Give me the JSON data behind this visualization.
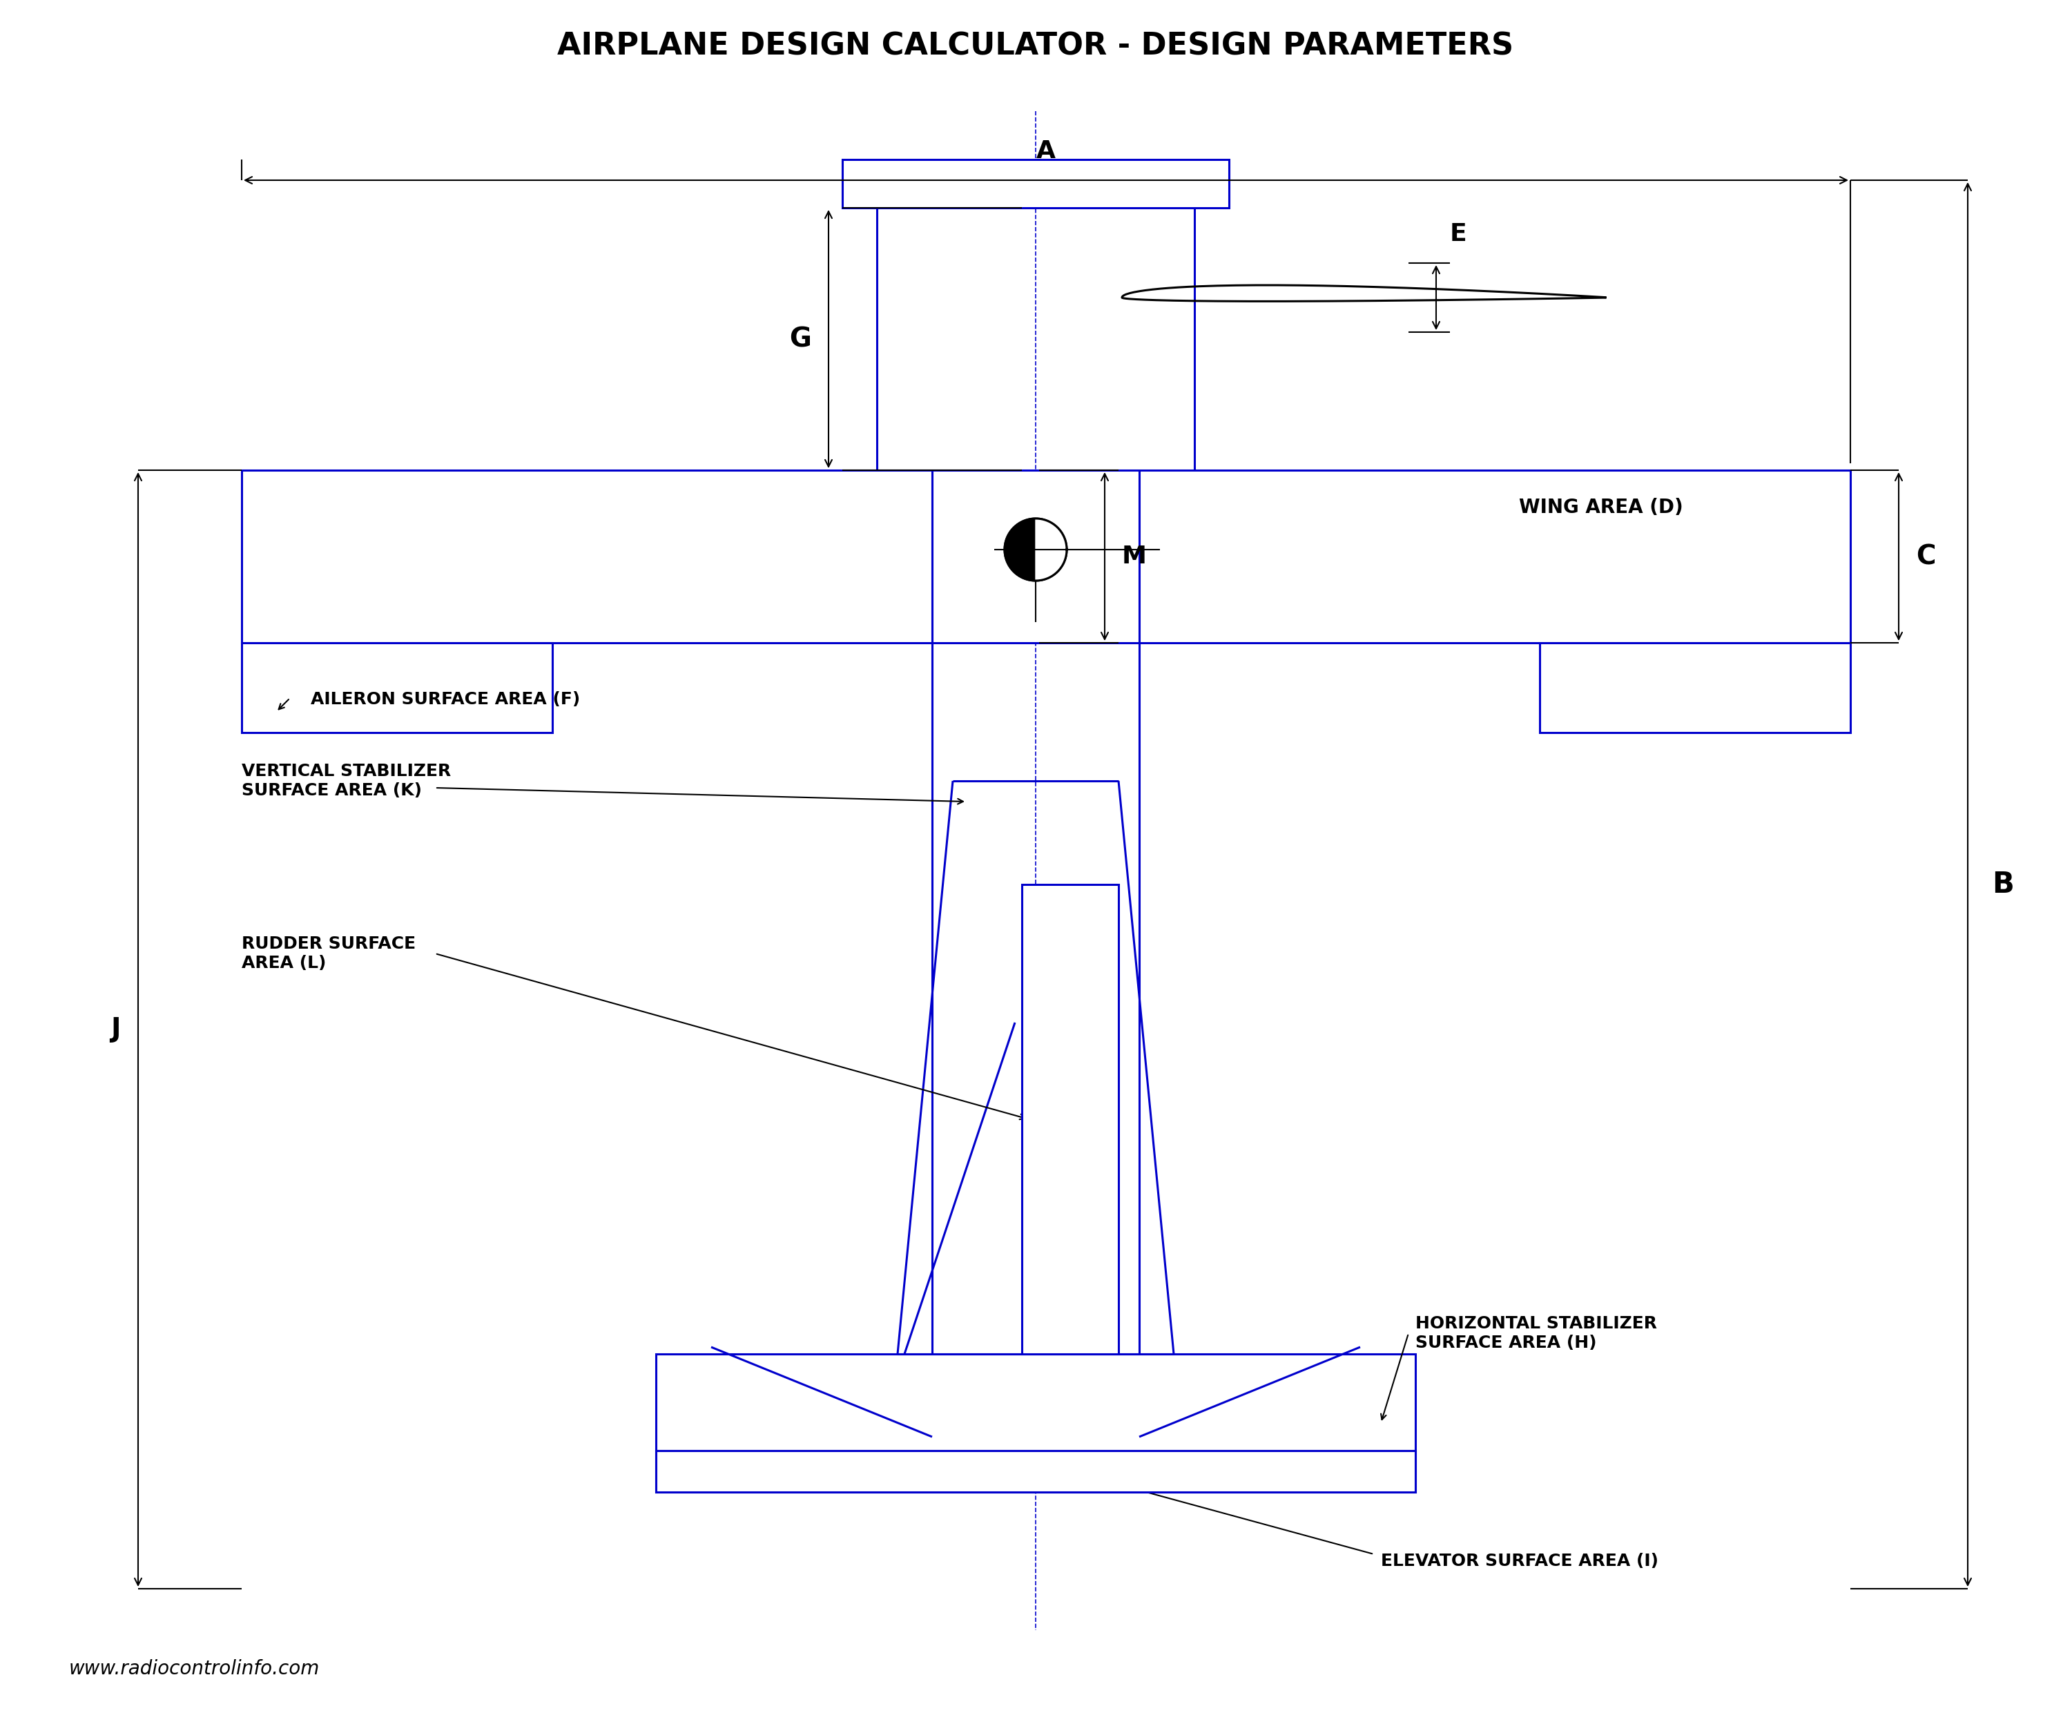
{
  "title": "AIRPLANE DESIGN CALCULATOR - DESIGN PARAMETERS",
  "bg_color": "#ffffff",
  "line_color_black": "#000000",
  "line_color_blue": "#0000cc",
  "watermark": "www.radiocontrolinfo.com",
  "labels": {
    "A": "A",
    "B": "B",
    "C": "C",
    "D": "WING AREA (D)",
    "E": "E",
    "F": "AILERON SURFACE AREA (F)",
    "G": "G",
    "H": "HORIZONTAL STABILIZER\nSURFACE AREA (H)",
    "I": "ELEVATOR SURFACE AREA (I)",
    "J": "J",
    "K": "VERTICAL STABILIZER\nSURFACE AREA (K)",
    "L": "RUDDER SURFACE\nAREA (L)",
    "M": "M"
  }
}
